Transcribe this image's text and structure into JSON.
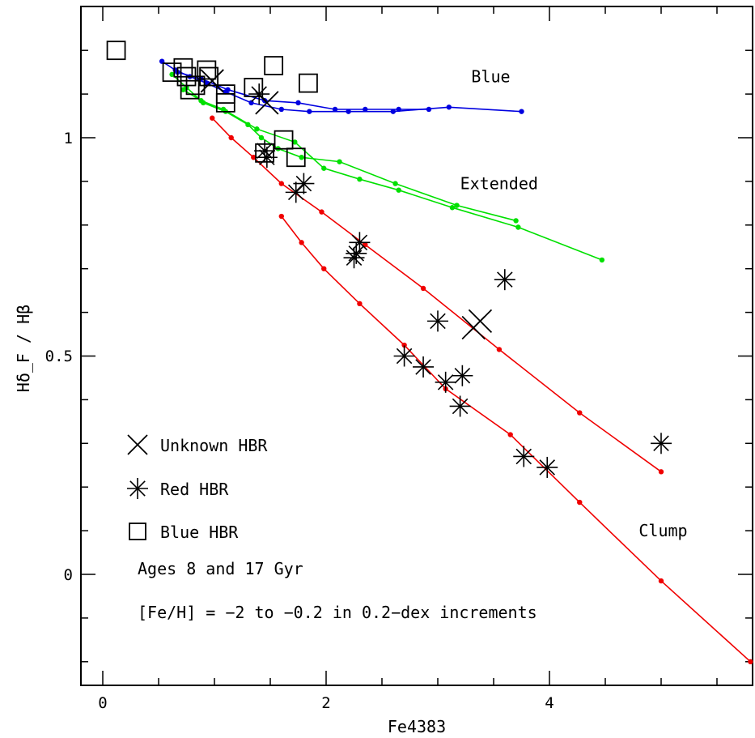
{
  "chart_data": {
    "type": "scatter",
    "title": "",
    "xlabel": "Fe4383",
    "ylabel": "Hδ_F / Hβ",
    "xlim": [
      -0.2,
      5.8
    ],
    "ylim": [
      -0.2,
      1.2
    ],
    "x_ticks": [
      "0",
      "2",
      "4"
    ],
    "y_ticks": [
      "0",
      "0.5",
      "1"
    ],
    "x_tick_values": [
      0,
      2,
      4
    ],
    "y_tick_values": [
      0,
      0.5,
      1
    ],
    "colors": {
      "blue": "#0000e0",
      "green": "#00e000",
      "red": "#f00000"
    },
    "curve_labels": [
      {
        "text": "Blue",
        "x": 3.3,
        "y": 1.14
      },
      {
        "text": "Extended",
        "x": 3.2,
        "y": 0.895
      },
      {
        "text": "Clump",
        "x": 4.8,
        "y": 0.1
      }
    ],
    "legend": [
      {
        "marker": "x",
        "label": "Unknown HBR"
      },
      {
        "marker": "asterisk",
        "label": "Red HBR"
      },
      {
        "marker": "square",
        "label": "Blue HBR"
      }
    ],
    "notes": [
      "Ages 8 and 17 Gyr",
      "[Fe/H] = −2 to −0.2 in 0.2−dex increments"
    ],
    "lines": [
      {
        "color": "blue",
        "points": [
          [
            0.53,
            1.175
          ],
          [
            0.65,
            1.155
          ],
          [
            0.78,
            1.14
          ],
          [
            0.93,
            1.125
          ],
          [
            1.1,
            1.105
          ],
          [
            1.33,
            1.08
          ],
          [
            1.6,
            1.065
          ],
          [
            1.85,
            1.06
          ],
          [
            2.2,
            1.06
          ],
          [
            2.6,
            1.06
          ],
          [
            3.1,
            1.07
          ],
          [
            3.75,
            1.06
          ]
        ]
      },
      {
        "color": "blue",
        "points": [
          [
            0.67,
            1.15
          ],
          [
            0.88,
            1.135
          ],
          [
            1.12,
            1.11
          ],
          [
            1.45,
            1.085
          ],
          [
            1.75,
            1.08
          ],
          [
            2.08,
            1.065
          ],
          [
            2.35,
            1.065
          ],
          [
            2.65,
            1.065
          ],
          [
            2.92,
            1.065
          ]
        ]
      },
      {
        "color": "green",
        "points": [
          [
            0.62,
            1.145
          ],
          [
            0.75,
            1.115
          ],
          [
            0.9,
            1.08
          ],
          [
            1.1,
            1.06
          ],
          [
            1.3,
            1.03
          ],
          [
            1.42,
            1.0
          ],
          [
            1.57,
            0.975
          ],
          [
            1.78,
            0.955
          ],
          [
            2.12,
            0.945
          ],
          [
            2.62,
            0.895
          ],
          [
            3.17,
            0.845
          ],
          [
            3.7,
            0.81
          ]
        ]
      },
      {
        "color": "green",
        "points": [
          [
            0.72,
            1.11
          ],
          [
            0.88,
            1.085
          ],
          [
            1.08,
            1.065
          ],
          [
            1.38,
            1.02
          ],
          [
            1.72,
            0.99
          ],
          [
            1.98,
            0.93
          ],
          [
            2.3,
            0.905
          ],
          [
            2.65,
            0.88
          ],
          [
            3.13,
            0.84
          ],
          [
            3.72,
            0.795
          ],
          [
            4.47,
            0.72
          ]
        ]
      },
      {
        "color": "red",
        "points": [
          [
            0.98,
            1.045
          ],
          [
            1.15,
            1.0
          ],
          [
            1.35,
            0.955
          ],
          [
            1.6,
            0.895
          ],
          [
            1.96,
            0.83
          ],
          [
            2.35,
            0.755
          ],
          [
            2.87,
            0.655
          ],
          [
            3.55,
            0.515
          ],
          [
            4.27,
            0.37
          ],
          [
            5.0,
            0.235
          ]
        ]
      },
      {
        "color": "red",
        "points": [
          [
            1.6,
            0.82
          ],
          [
            1.78,
            0.76
          ],
          [
            1.98,
            0.7
          ],
          [
            2.3,
            0.62
          ],
          [
            2.7,
            0.525
          ],
          [
            3.07,
            0.425
          ],
          [
            3.65,
            0.32
          ],
          [
            4.27,
            0.165
          ],
          [
            5.0,
            -0.015
          ],
          [
            5.8,
            -0.2
          ]
        ]
      }
    ],
    "series": [
      {
        "marker": "square",
        "points": [
          [
            0.12,
            1.2
          ],
          [
            0.62,
            1.15
          ],
          [
            0.72,
            1.16
          ],
          [
            0.75,
            1.14
          ],
          [
            0.83,
            1.12
          ],
          [
            0.78,
            1.11
          ],
          [
            0.93,
            1.155
          ],
          [
            0.95,
            1.14
          ],
          [
            1.1,
            1.1
          ],
          [
            1.1,
            1.08
          ],
          [
            1.35,
            1.115
          ],
          [
            1.53,
            1.165
          ],
          [
            1.84,
            1.125
          ],
          [
            1.62,
            0.995
          ],
          [
            1.45,
            0.965
          ],
          [
            1.73,
            0.955
          ]
        ]
      },
      {
        "marker": "asterisk",
        "points": [
          [
            1.4,
            1.1
          ],
          [
            1.45,
            0.97
          ],
          [
            1.47,
            0.955
          ],
          [
            1.73,
            0.875
          ],
          [
            1.8,
            0.895
          ],
          [
            2.3,
            0.76
          ],
          [
            2.27,
            0.735
          ],
          [
            2.25,
            0.725
          ],
          [
            3.6,
            0.675
          ],
          [
            3.0,
            0.58
          ],
          [
            2.7,
            0.5
          ],
          [
            2.87,
            0.475
          ],
          [
            3.07,
            0.44
          ],
          [
            3.22,
            0.455
          ],
          [
            3.2,
            0.385
          ],
          [
            3.77,
            0.27
          ],
          [
            3.98,
            0.245
          ],
          [
            5.0,
            0.3
          ]
        ]
      },
      {
        "marker": "x",
        "points": [
          [
            0.98,
            1.13
          ],
          [
            1.47,
            1.08
          ],
          [
            3.38,
            0.58
          ],
          [
            3.32,
            0.565
          ]
        ]
      }
    ]
  }
}
